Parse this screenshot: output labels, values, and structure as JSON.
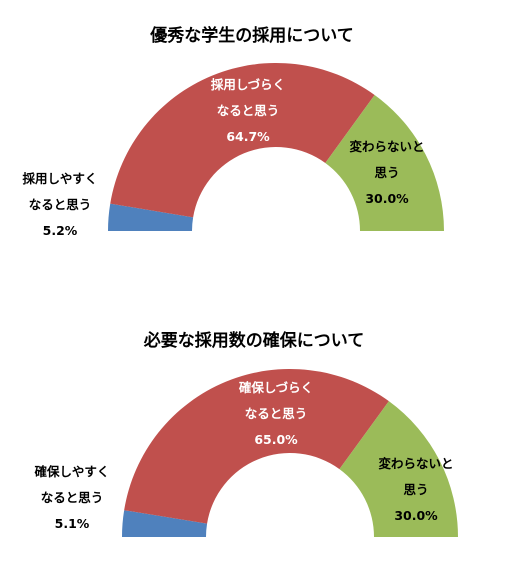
{
  "chart_data": [
    {
      "type": "pie",
      "title": "優秀な学生の採用について",
      "slices": [
        {
          "label_lines": [
            "採用しやすく",
            "なると思う"
          ],
          "value": 5.2,
          "value_text": "5.2%",
          "color": "#4f81bd"
        },
        {
          "label_lines": [
            "採用しづらく",
            "なると思う"
          ],
          "value": 64.7,
          "value_text": "64.7%",
          "color": "#c0504d"
        },
        {
          "label_lines": [
            "変わらないと",
            "思う"
          ],
          "value": 30.0,
          "value_text": "30.0%",
          "color": "#9bbb59"
        }
      ]
    },
    {
      "type": "pie",
      "title": "必要な採用数の確保について",
      "slices": [
        {
          "label_lines": [
            "確保しやすく",
            "なると思う"
          ],
          "value": 5.1,
          "value_text": "5.1%",
          "color": "#4f81bd"
        },
        {
          "label_lines": [
            "確保しづらく",
            "なると思う"
          ],
          "value": 65.0,
          "value_text": "65.0%",
          "color": "#c0504d"
        },
        {
          "label_lines": [
            "変わらないと",
            "思う"
          ],
          "value": 30.0,
          "value_text": "30.0%",
          "color": "#9bbb59"
        }
      ]
    }
  ]
}
